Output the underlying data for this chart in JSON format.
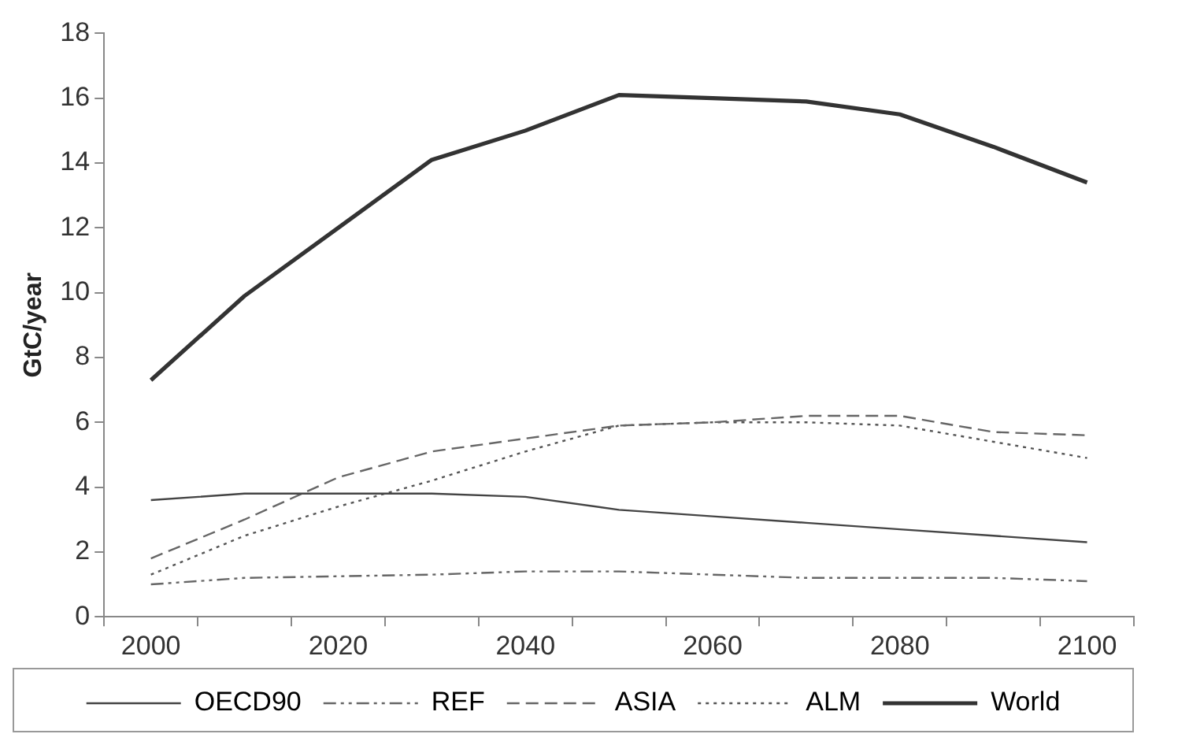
{
  "chart_data": {
    "type": "line",
    "ylabel": "GtC/year",
    "categories": [
      "2000",
      null,
      "2020",
      null,
      "2040",
      null,
      "2060",
      null,
      "2080",
      null,
      "2100"
    ],
    "ylim": [
      0,
      18
    ],
    "yticks": [
      0,
      2,
      4,
      6,
      8,
      10,
      12,
      14,
      16,
      18
    ],
    "grid": false,
    "legend": "bottom",
    "marker": "none",
    "series": [
      {
        "name": "OECD90",
        "color": "#444444",
        "line_style": "solid",
        "values": [
          3.6,
          3.8,
          3.8,
          3.8,
          3.7,
          3.3,
          3.1,
          2.9,
          2.7,
          2.5,
          2.3
        ]
      },
      {
        "name": "REF",
        "color": "#666666",
        "line_style": "dashdot",
        "values": [
          1.0,
          1.2,
          1.25,
          1.3,
          1.4,
          1.4,
          1.3,
          1.2,
          1.2,
          1.2,
          1.1
        ]
      },
      {
        "name": "ASIA",
        "color": "#666666",
        "line_style": "dashed",
        "values": [
          1.8,
          3.0,
          4.3,
          5.1,
          5.5,
          5.9,
          6.0,
          6.2,
          6.2,
          5.7,
          5.6
        ]
      },
      {
        "name": "ALM",
        "color": "#555555",
        "line_style": "dotted",
        "values": [
          1.3,
          2.5,
          3.4,
          4.2,
          5.1,
          5.9,
          6.0,
          6.0,
          5.9,
          5.4,
          4.9
        ]
      },
      {
        "name": "World",
        "color": "#333333",
        "line_style": "solid",
        "values": [
          7.3,
          9.9,
          12.0,
          14.1,
          15.0,
          16.1,
          16.0,
          15.9,
          15.5,
          14.5,
          13.4
        ]
      }
    ]
  }
}
